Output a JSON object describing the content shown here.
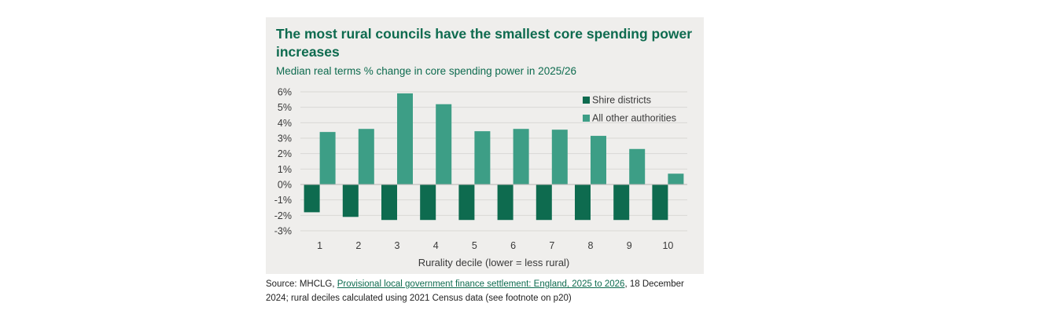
{
  "chart_data": {
    "type": "bar",
    "title": "The most rural councils have the smallest core spending power increases",
    "subtitle": "Median real terms % change in core spending power in 2025/26",
    "xlabel": "Rurality decile (lower = less rural)",
    "ylabel": "",
    "categories": [
      "1",
      "2",
      "3",
      "4",
      "5",
      "6",
      "7",
      "8",
      "9",
      "10"
    ],
    "yticks": [
      "6%",
      "5%",
      "4%",
      "3%",
      "2%",
      "1%",
      "0%",
      "-1%",
      "-2%",
      "-3%"
    ],
    "ylim": [
      -3,
      6
    ],
    "series": [
      {
        "name": "Shire districts",
        "color": "#0e6b4f",
        "values": [
          -1.8,
          -2.1,
          -2.3,
          -2.3,
          -2.3,
          -2.3,
          -2.3,
          -2.3,
          -2.3,
          -2.3
        ]
      },
      {
        "name": "All other authorities",
        "color": "#3d9e86",
        "values": [
          3.4,
          3.6,
          5.9,
          5.2,
          3.45,
          3.6,
          3.55,
          3.15,
          2.3,
          0.7
        ]
      }
    ],
    "grid": true,
    "legend_position": "top-right"
  },
  "source": {
    "prefix": "Source: MHCLG, ",
    "link_text": "Provisional local government finance settlement: England, 2025 to 2026",
    "suffix": ", 18 December 2024; rural deciles calculated using 2021 Census data (see footnote on p20)"
  }
}
